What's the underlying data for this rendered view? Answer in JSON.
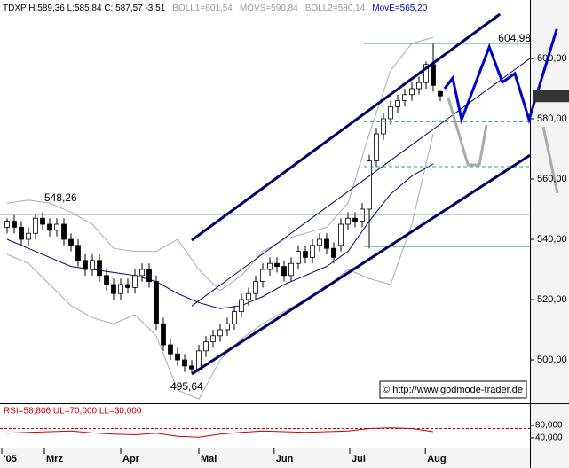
{
  "chart_data": {
    "type": "candlestick",
    "header": [
      "TDXP H:589,36 L:585,84 C: 587,57 -3,51",
      "BOLL1=601,54",
      "MOVS=590,84",
      "BOLL2=580,14",
      "MovE=565,20"
    ],
    "header_colors": [
      "#000000",
      "#999999",
      "#999999",
      "#999999",
      "#0000cc"
    ],
    "open": [
      544,
      546,
      544,
      540,
      542,
      547,
      545,
      543,
      545,
      540,
      538,
      533,
      530,
      533,
      528,
      525,
      522,
      525,
      524,
      528,
      530,
      526,
      512,
      505,
      502,
      500,
      498,
      497,
      503,
      506,
      508,
      510,
      512,
      516,
      520,
      522,
      526,
      530,
      532,
      531,
      528,
      532,
      536,
      534,
      538,
      540,
      537,
      538,
      545,
      547,
      546,
      550,
      566,
      575,
      580,
      584,
      586,
      588,
      590,
      592,
      598,
      589
    ],
    "high": [
      547,
      548,
      546,
      544,
      548.26,
      549,
      547,
      547,
      547,
      542,
      540,
      535,
      535,
      535,
      530,
      527,
      527,
      527,
      530,
      532,
      532,
      528,
      514,
      507,
      504,
      502,
      500,
      505,
      508,
      510,
      512,
      514,
      518,
      522,
      524,
      528,
      532,
      534,
      534,
      533,
      534,
      538,
      538,
      540,
      542,
      542,
      539,
      547,
      549,
      549,
      552,
      568,
      577,
      582,
      586,
      588,
      590,
      592,
      594,
      599,
      604.98,
      589.36
    ],
    "low": [
      542,
      542,
      538,
      538,
      540,
      543,
      541,
      541,
      538,
      536,
      531,
      528,
      528,
      526,
      523,
      520,
      520,
      522,
      522,
      526,
      524,
      510,
      503,
      500,
      498,
      496,
      495.64,
      496,
      501,
      504,
      506,
      508,
      510,
      514,
      518,
      520,
      524,
      528,
      529,
      526,
      526,
      530,
      532,
      532,
      536,
      535,
      532,
      536,
      543,
      544,
      544,
      537,
      564,
      573,
      578,
      582,
      584,
      586,
      588,
      590,
      589,
      585.84
    ],
    "close": [
      546,
      544,
      540,
      542,
      547,
      545,
      543,
      545,
      540,
      538,
      533,
      530,
      533,
      528,
      525,
      522,
      525,
      524,
      528,
      530,
      526,
      512,
      505,
      502,
      500,
      498,
      497,
      503,
      506,
      508,
      510,
      512,
      516,
      520,
      522,
      526,
      530,
      532,
      531,
      528,
      532,
      536,
      534,
      538,
      540,
      537,
      534,
      545,
      547,
      546,
      550,
      566,
      575,
      580,
      584,
      586,
      588,
      590,
      592,
      598,
      591.08,
      587.57
    ],
    "up_color": "#ffffff",
    "down_color": "#000000",
    "xlim": [
      -1,
      73.625
    ],
    "ylim": [
      485.6,
      619.4
    ],
    "yticks": [
      {
        "value": 500,
        "label": "500,00"
      },
      {
        "value": 520,
        "label": "520,00"
      },
      {
        "value": 540,
        "label": "540,00"
      },
      {
        "value": 560,
        "label": "560,00"
      },
      {
        "value": 580,
        "label": "580,00"
      },
      {
        "value": 600,
        "label": "600,00"
      }
    ],
    "xticks": [
      {
        "value": -0.75,
        "label": "'05"
      },
      {
        "value": 5.25,
        "label": "Mrz"
      },
      {
        "value": 16,
        "label": "Apr"
      },
      {
        "value": 27,
        "label": "Mai"
      },
      {
        "value": 37.6,
        "label": "Jun"
      },
      {
        "value": 48.25,
        "label": "Jul"
      },
      {
        "value": 58.9,
        "label": "Aug"
      }
    ],
    "last_price": {
      "value": 587.57,
      "label": "587,57"
    },
    "indicators": [
      {
        "x": [
          0,
          3,
          6,
          9,
          12,
          15,
          18,
          21,
          24,
          27,
          30,
          33,
          36,
          39,
          42,
          45,
          48,
          51,
          54,
          57,
          60
        ],
        "values": [
          552,
          553,
          552,
          549,
          545,
          537,
          536,
          536,
          540,
          530,
          523,
          528,
          536,
          540,
          542,
          544,
          552,
          575,
          596,
          605,
          607
        ],
        "color": "#aaaaaa"
      },
      {
        "x": [
          0,
          3,
          6,
          9,
          12,
          15,
          18,
          21,
          24,
          27,
          30,
          33,
          36,
          39,
          42,
          45,
          48,
          51,
          54,
          57,
          60
        ],
        "values": [
          535,
          532,
          525,
          518,
          514,
          512,
          515,
          508,
          490,
          487,
          500,
          507,
          512,
          516,
          520,
          524,
          530,
          527,
          525,
          545,
          575
        ],
        "color": "#aaaaaa"
      },
      {
        "x": [
          0,
          3,
          6,
          9,
          12,
          15,
          18,
          21,
          24,
          27,
          30,
          33,
          36,
          39,
          42,
          45,
          48,
          51,
          54,
          57,
          60
        ],
        "values": [
          540,
          537,
          534,
          531,
          530,
          529,
          528,
          526,
          522,
          519,
          517,
          518,
          521,
          525,
          528,
          531,
          536,
          546,
          555,
          561,
          565
        ],
        "color": "#000080"
      }
    ],
    "overlays": [
      {
        "x": [
          -1,
          73.625
        ],
        "values": [
          548.26,
          548.26
        ],
        "color": "#339999",
        "width": 1,
        "dash": false
      },
      {
        "x": [
          50.25,
          73.625
        ],
        "values": [
          604.98,
          604.98
        ],
        "color": "#339999",
        "width": 1,
        "dash": false
      },
      {
        "x": [
          50.25,
          73.625
        ],
        "values": [
          579,
          579
        ],
        "color": "#339999",
        "width": 1,
        "dash": true
      },
      {
        "x": [
          50.25,
          73.625
        ],
        "values": [
          564.1,
          564.1
        ],
        "color": "#339999",
        "width": 1,
        "dash": true
      },
      {
        "x": [
          50.25,
          73.625
        ],
        "values": [
          537.6,
          537.6
        ],
        "color": "#339999",
        "width": 1,
        "dash": false
      },
      {
        "x": [
          26,
          69.4
        ],
        "values": [
          539.7,
          614.7
        ],
        "color": "#000066",
        "width": 3,
        "dash": false
      },
      {
        "x": [
          26,
          73.625
        ],
        "values": [
          495.3,
          567.9
        ],
        "color": "#000066",
        "width": 3,
        "dash": false
      },
      {
        "x": [
          26,
          73.625
        ],
        "values": [
          517.9,
          600
        ],
        "color": "#000066",
        "width": 1,
        "dash": false
      },
      {
        "x": [
          62.1,
          64.9,
          66.5,
          67.5,
          70.9,
          75.5,
          77.5
        ],
        "values": [
          587.1,
          564.7,
          564.7,
          577.9,
          null,
          577.3,
          555.3
        ],
        "color": "#aaaaaa",
        "width": 3,
        "dash": false
      },
      {
        "x": [
          61.6,
          62.75,
          64,
          67.9,
          69.75,
          71.5,
          73.5,
          77.4
        ],
        "values": [
          590,
          593.5,
          579.7,
          603.8,
          592.1,
          595,
          579.7,
          609.7
        ],
        "color": "#0000cc",
        "width": 3,
        "dash": false
      }
    ],
    "annotations": [
      "548,26",
      "604,98",
      "495,64"
    ],
    "source": "© http://www.godmode-trader.de",
    "rsi": {
      "label": "RSI=58,806 UL=70,000 LL=30,000",
      "x": [
        0,
        3,
        6,
        9,
        12,
        15,
        18,
        21,
        24,
        27,
        30,
        33,
        36,
        39,
        42,
        45,
        48,
        51,
        54,
        57,
        60
      ],
      "values": [
        55,
        58,
        60,
        62,
        56,
        52,
        50,
        55,
        45,
        42,
        52,
        58,
        62,
        60,
        58,
        60,
        62,
        70,
        72,
        70,
        60
      ],
      "color": "#cc0000",
      "ylim": [
        8.6,
        145.7
      ],
      "yticks": [
        {
          "value": 80,
          "label": "80,000"
        },
        {
          "value": 40,
          "label": "40,000"
        }
      ],
      "levels": [
        70,
        30
      ]
    }
  }
}
